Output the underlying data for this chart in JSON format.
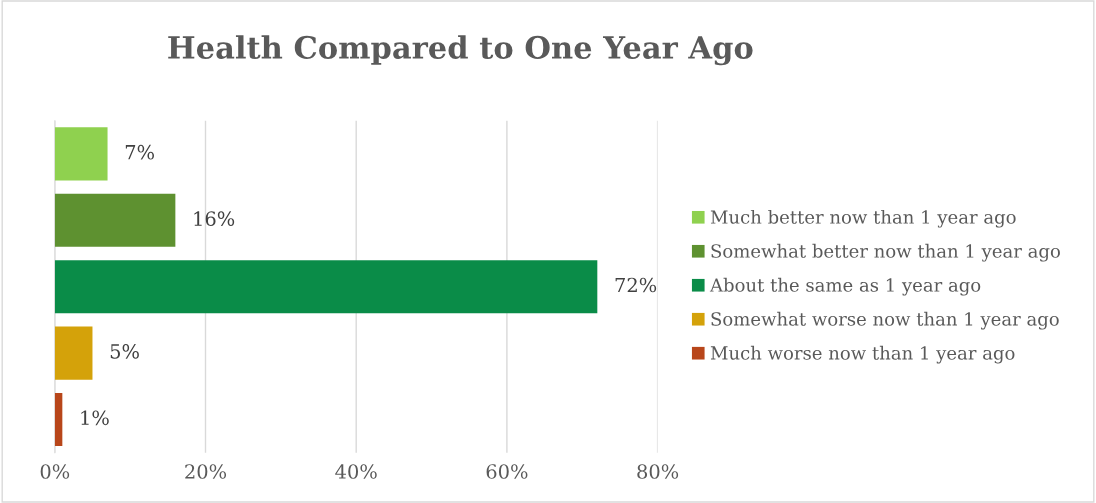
{
  "chart_data": {
    "type": "bar",
    "orientation": "horizontal",
    "title": "Health Compared to One Year Ago",
    "categories": [
      null,
      null,
      null,
      null,
      null
    ],
    "series": [
      {
        "name": "Much better now than 1 year ago",
        "color": "#8fd14f",
        "values": [
          7,
          null,
          null,
          null,
          null
        ],
        "value_labels": [
          "7%",
          null,
          null,
          null,
          null
        ]
      },
      {
        "name": "Somewhat better now than 1 year ago",
        "color": "#5e9130",
        "values": [
          null,
          16,
          null,
          null,
          null
        ],
        "value_labels": [
          null,
          "16%",
          null,
          null,
          null
        ]
      },
      {
        "name": "About the same as 1 year ago",
        "color": "#0a8c48",
        "values": [
          null,
          null,
          72,
          null,
          null
        ],
        "value_labels": [
          null,
          null,
          "72%",
          null,
          null
        ]
      },
      {
        "name": "Somewhat worse now than 1 year ago",
        "color": "#d4a20a",
        "values": [
          null,
          null,
          null,
          5,
          null
        ],
        "value_labels": [
          null,
          null,
          null,
          "5%",
          null
        ]
      },
      {
        "name": "Much worse now than 1 year ago",
        "color": "#b8461a",
        "values": [
          null,
          null,
          null,
          null,
          1
        ],
        "value_labels": [
          null,
          null,
          null,
          null,
          "1%"
        ]
      }
    ],
    "xlim": [
      0,
      80
    ],
    "xticks": [
      {
        "value": 0,
        "label": "0%"
      },
      {
        "value": 20,
        "label": "20%"
      },
      {
        "value": 40,
        "label": "40%"
      },
      {
        "value": 60,
        "label": "60%"
      },
      {
        "value": 80,
        "label": "80%"
      }
    ],
    "grid": "x",
    "legend": "right",
    "tick_labels": "x"
  }
}
